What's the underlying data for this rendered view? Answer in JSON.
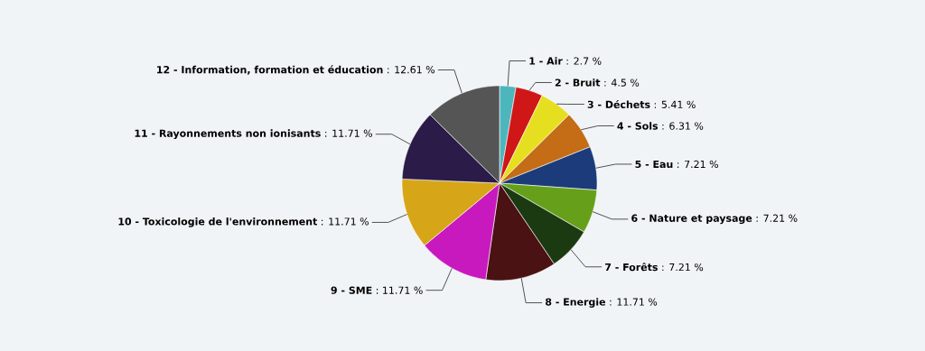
{
  "chart_data": {
    "type": "pie",
    "categories": [
      "1 - Air",
      "2 - Bruit",
      "3 - Déchets",
      "4 - Sols",
      "5 - Eau",
      "6 - Nature et paysage",
      "7 - Forêts",
      "8 - Energie",
      "9 - SME",
      "10 - Toxicologie de l'environnement",
      "11 - Rayonnements non ionisants",
      "12 - Information, formation et éducation"
    ],
    "values": [
      2.7,
      4.5,
      5.41,
      6.31,
      7.21,
      7.21,
      7.21,
      11.71,
      11.71,
      11.71,
      11.71,
      12.61
    ],
    "value_labels": [
      ": 2.7 %",
      ": 4.5 %",
      ": 5.41 %",
      ": 6.31 %",
      ": 7.21 %",
      ": 7.21 %",
      ": 7.21 %",
      ": 11.71 %",
      ": 11.71 %",
      ": 11.71 %",
      ": 11.71 %",
      ": 12.61 %"
    ],
    "colors": [
      "#4db6bd",
      "#cf1717",
      "#e6df1f",
      "#c46c16",
      "#1b3b7a",
      "#66a01a",
      "#1c3a12",
      "#4a1212",
      "#c819bf",
      "#d6a618",
      "#2b1b48",
      "#555555"
    ]
  }
}
